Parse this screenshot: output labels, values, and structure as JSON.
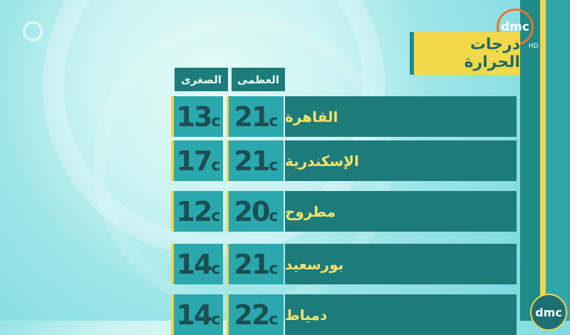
{
  "channel": {
    "logo_text": "dmc",
    "hd_label": "HD"
  },
  "title": "درجات الحرارة",
  "headers": {
    "max": "العظمى",
    "min": "الصغرى"
  },
  "unit": "c",
  "rows": [
    {
      "city": "القاهرة",
      "max": "21",
      "min": "13"
    },
    {
      "city": "الإسكندرية",
      "max": "21",
      "min": "17"
    },
    {
      "city": "مطروح",
      "max": "20",
      "min": "12"
    },
    {
      "city": "بورسعيد",
      "max": "21",
      "min": "14"
    },
    {
      "city": "دمياط",
      "max": "22",
      "min": "14"
    }
  ],
  "colors": {
    "teal_dark": "#1e7b7b",
    "teal_light": "#2aa8ad",
    "yellow": "#f2d54a",
    "logo_ring": "#e8742a"
  }
}
